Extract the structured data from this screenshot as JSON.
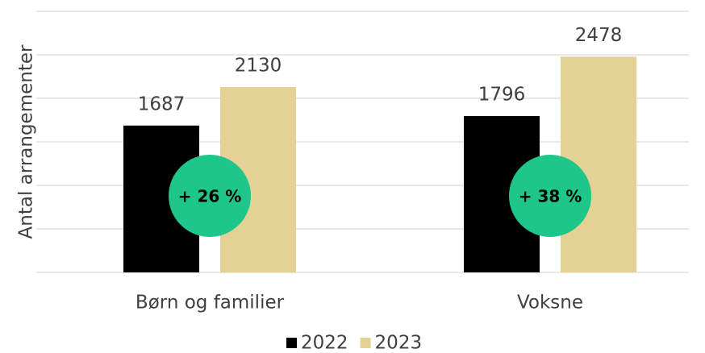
{
  "chart_data": {
    "type": "bar",
    "ylabel": "Antal arrangementer",
    "categories": [
      "Børn og familier",
      "Voksne"
    ],
    "series": [
      {
        "name": "2022",
        "color": "#000000",
        "values": [
          1687,
          1796
        ]
      },
      {
        "name": "2023",
        "color": "#e3d195",
        "values": [
          2130,
          2478
        ]
      }
    ],
    "annotations": [
      "+ 26 %",
      "+ 38 %"
    ],
    "annotation_color": "#1ec689",
    "ylim": [
      0,
      3000
    ],
    "yticks": [
      0,
      500,
      1000,
      1500,
      2000,
      2500,
      3000
    ],
    "grid": true,
    "legend": "bottom"
  }
}
